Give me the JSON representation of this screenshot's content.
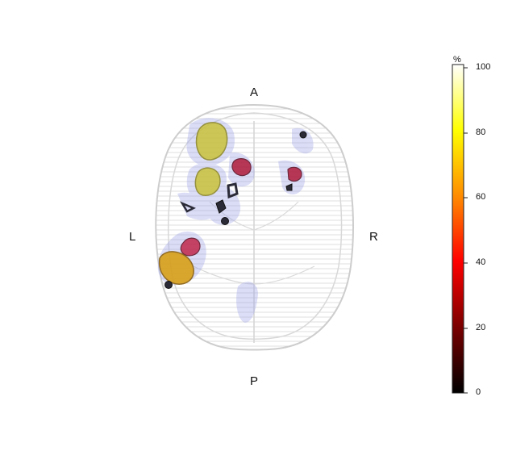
{
  "orientation": {
    "anterior": "A",
    "posterior": "P",
    "left": "L",
    "right": "R"
  },
  "colorbar": {
    "unit": "%",
    "ticks": [
      "100",
      "80",
      "60",
      "40",
      "20",
      "0"
    ],
    "range": [
      0,
      100
    ],
    "colormap": [
      "#000000",
      "#7a0000",
      "#ff0000",
      "#ff8c00",
      "#ffff00",
      "#ffffff"
    ]
  },
  "brain": {
    "outline_color": "#c8c8c8",
    "shell_color": "#ececec"
  },
  "regions": [
    {
      "id": "frontal-left-upper",
      "color": "#c9c23a"
    },
    {
      "id": "frontal-left-lower",
      "color": "#c9c23a"
    },
    {
      "id": "frontal-mid-red",
      "color": "#b01a3a"
    },
    {
      "id": "frontal-right-red",
      "color": "#b01a3a"
    },
    {
      "id": "temporal-left-red",
      "color": "#c0284a"
    },
    {
      "id": "temporal-left-orange",
      "color": "#d8a018"
    },
    {
      "id": "dark-structure",
      "color": "#2b2b38"
    },
    {
      "id": "halo",
      "color": "#9aa0e8"
    }
  ]
}
